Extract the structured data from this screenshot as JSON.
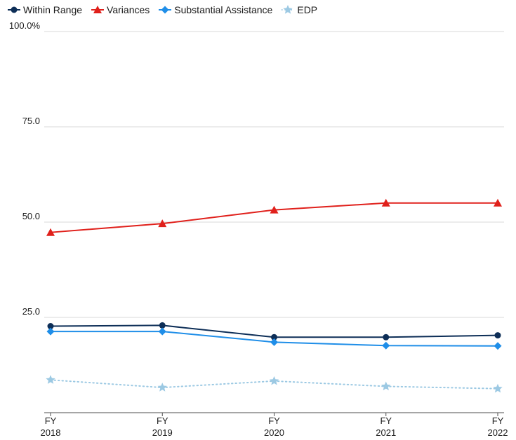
{
  "chart_data": {
    "type": "line",
    "categories": [
      [
        "FY",
        "2018"
      ],
      [
        "FY",
        "2019"
      ],
      [
        "FY",
        "2020"
      ],
      [
        "FY",
        "2021"
      ],
      [
        "FY",
        "2022"
      ]
    ],
    "ylim": [
      0,
      100
    ],
    "y_ticks": [
      "25.0",
      "50.0",
      "75.0",
      "100.0%"
    ],
    "y_tick_values": [
      25,
      50,
      75,
      100
    ],
    "grid": "horizontal",
    "legend_position": "top-left",
    "series": [
      {
        "name": "Within Range",
        "color": "#0d2e57",
        "marker": "circle",
        "dash": "solid",
        "values": [
          22.7,
          22.9,
          19.8,
          19.8,
          20.3
        ]
      },
      {
        "name": "Variances",
        "color": "#e0201b",
        "marker": "triangle",
        "dash": "solid",
        "values": [
          47.3,
          49.6,
          53.2,
          55.0,
          55.0
        ]
      },
      {
        "name": "Substantial Assistance",
        "color": "#1f8ee8",
        "marker": "diamond",
        "dash": "solid",
        "values": [
          21.3,
          21.3,
          18.5,
          17.6,
          17.5
        ]
      },
      {
        "name": "EDP",
        "color": "#9cc9e3",
        "marker": "star",
        "dash": "dotted",
        "values": [
          8.6,
          6.6,
          8.3,
          6.9,
          6.3
        ]
      }
    ]
  }
}
